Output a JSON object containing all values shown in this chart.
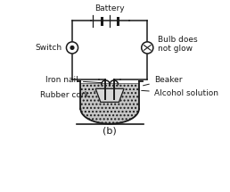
{
  "title": "(b)",
  "background_color": "#ffffff",
  "line_color": "#1a1a1a",
  "labels": {
    "battery": "Battery",
    "switch": "Switch",
    "bulb": "Bulb does\nnot glow",
    "beaker": "Beaker",
    "iron_nail": "Iron nail",
    "rubber_cork": "Rubber cork",
    "alcohol": "Alcohol solution"
  },
  "label_fontsize": 6.5,
  "title_fontsize": 8.0
}
